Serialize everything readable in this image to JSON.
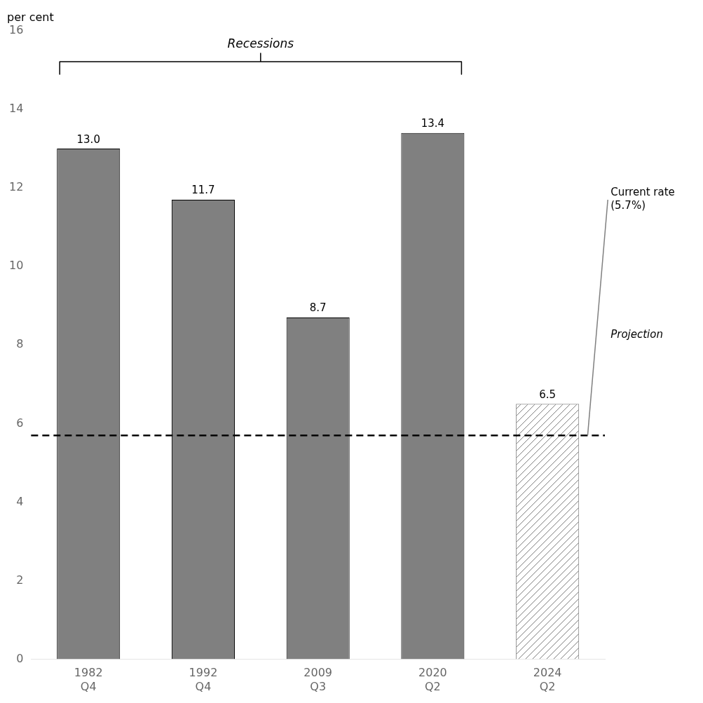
{
  "chart_data": {
    "type": "bar",
    "categories": [
      "1982\nQ4",
      "1992\nQ4",
      "2009\nQ3",
      "2020\nQ2",
      "2024\nQ2"
    ],
    "values": [
      13.0,
      11.7,
      8.7,
      13.4,
      6.5
    ],
    "value_labels": [
      "13.0",
      "11.7",
      "8.7",
      "13.4",
      "6.5"
    ],
    "data_labels": true,
    "colors": [
      "#808080",
      "#808080",
      "#808080",
      "#808080",
      "#808080"
    ],
    "ylabel": "per cent",
    "ylim": [
      0,
      16
    ],
    "yticks": [
      0,
      2,
      4,
      6,
      8,
      10,
      12,
      14,
      16
    ],
    "grid": false,
    "annotations": {
      "bracket": {
        "text": "Recessions",
        "categories": [
          "1982\nQ4",
          "1992\nQ4",
          "2009\nQ3",
          "2020\nQ2"
        ]
      },
      "bar_note": {
        "text": "Projection",
        "categories": [
          "2024\nQ2"
        ]
      },
      "hline": {
        "text": "Current rate\n(5.7%)",
        "y": 5.7,
        "color": "#000000",
        "line_style": "dashed"
      }
    }
  }
}
